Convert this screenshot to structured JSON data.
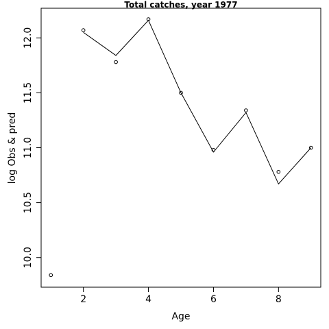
{
  "chart_data": {
    "type": "line",
    "title": "Total catches, year 1977",
    "xlabel": "Age",
    "ylabel": "log Obs & pred",
    "xlim": [
      0.7,
      9.3
    ],
    "ylim": [
      9.73,
      12.27
    ],
    "x_ticks": [
      "2",
      "4",
      "6",
      "8"
    ],
    "y_ticks": [
      "10.0",
      "10.5",
      "11.0",
      "11.5",
      "12.0"
    ],
    "grid": false,
    "legend": "none",
    "series": [
      {
        "style": "points",
        "marker": "open-circle",
        "x": [
          1,
          2,
          3,
          4,
          5,
          6,
          7,
          8,
          9
        ],
        "y": [
          9.84,
          12.07,
          11.78,
          12.17,
          11.5,
          10.98,
          11.34,
          10.78,
          11.0
        ]
      },
      {
        "style": "line",
        "x": [
          2,
          3,
          4,
          5,
          6,
          7,
          8,
          9
        ],
        "y": [
          12.05,
          11.84,
          12.16,
          11.5,
          10.96,
          11.32,
          10.67,
          11.0
        ]
      }
    ],
    "colors": {
      "foreground": "#000000",
      "background": "#ffffff"
    }
  }
}
